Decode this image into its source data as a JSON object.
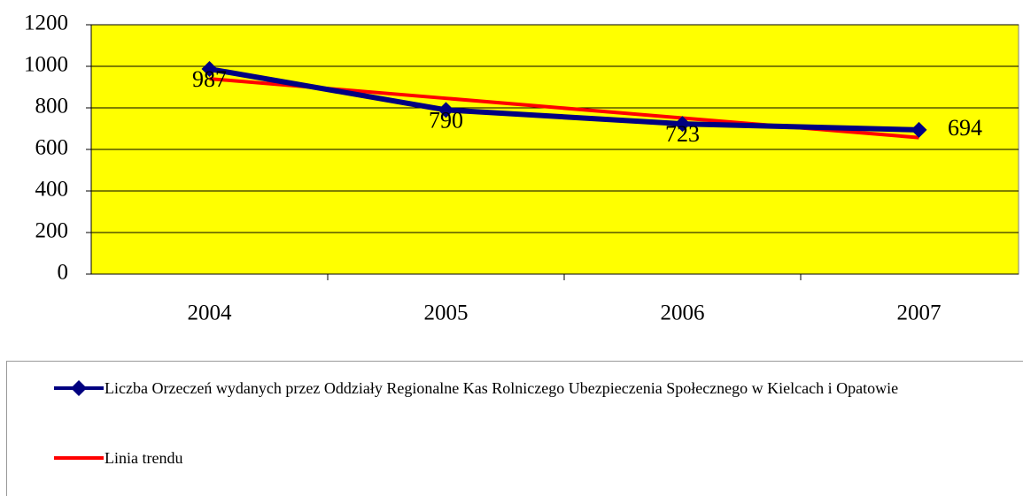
{
  "chart_data": {
    "type": "line",
    "categories": [
      "2004",
      "2005",
      "2006",
      "2007"
    ],
    "series": [
      {
        "name": "Liczba Orzeczeń wydanych przez Oddziały Regionalne Kas Rolniczego Ubezpieczenia Społecznego w Kielcach i Opatowie",
        "color": "#000080",
        "values": [
          987,
          790,
          723,
          694
        ]
      },
      {
        "name": "Linia trendu",
        "color": "#ff0000",
        "values": [
          940,
          846,
          751,
          657
        ]
      }
    ],
    "ylim": [
      0,
      1200
    ],
    "yticks": [
      0,
      200,
      400,
      600,
      800,
      1000,
      1200
    ],
    "grid": true,
    "background": "#ffff00"
  }
}
